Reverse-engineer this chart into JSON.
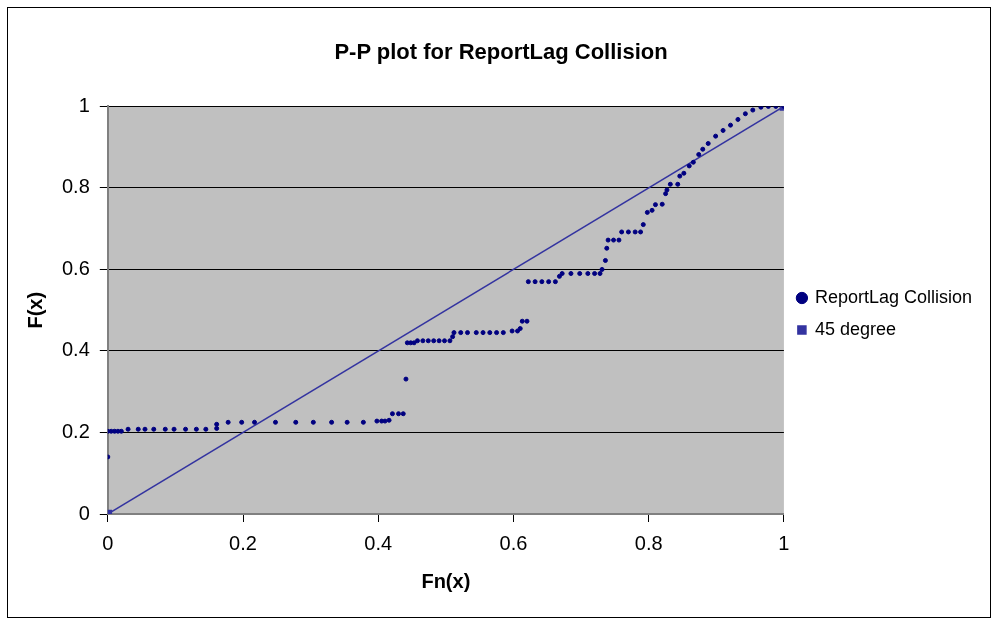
{
  "chart_data": {
    "type": "scatter",
    "title": "P-P plot for ReportLag Collision",
    "xlabel": "Fn(x)",
    "ylabel": "F(x)",
    "xlim": [
      0,
      1
    ],
    "xticks": [
      0,
      0.2,
      0.4,
      0.6,
      0.8,
      1
    ],
    "ylim": [
      0,
      1
    ],
    "yticks": [
      0,
      0.2,
      0.4,
      0.6,
      0.8,
      1
    ],
    "grid": "y",
    "legend": "right",
    "series": [
      {
        "name": "ReportLag Collision",
        "marker": "circle",
        "color": "#000080",
        "x": [
          0,
          0,
          0.005,
          0.01,
          0.015,
          0.02,
          0.03,
          0.045,
          0.055,
          0.068,
          0.085,
          0.098,
          0.115,
          0.131,
          0.145,
          0.161,
          0.161,
          0.178,
          0.198,
          0.217,
          0.248,
          0.278,
          0.304,
          0.331,
          0.354,
          0.378,
          0.398,
          0.405,
          0.41,
          0.416,
          0.421,
          0.43,
          0.437,
          0.441,
          0.443,
          0.448,
          0.453,
          0.458,
          0.466,
          0.474,
          0.482,
          0.49,
          0.498,
          0.506,
          0.51,
          0.512,
          0.522,
          0.532,
          0.545,
          0.555,
          0.565,
          0.575,
          0.585,
          0.598,
          0.606,
          0.61,
          0.613,
          0.62,
          0.622,
          0.632,
          0.642,
          0.652,
          0.662,
          0.668,
          0.672,
          0.685,
          0.698,
          0.71,
          0.72,
          0.728,
          0.731,
          0.736,
          0.738,
          0.74,
          0.748,
          0.756,
          0.76,
          0.77,
          0.78,
          0.788,
          0.792,
          0.798,
          0.805,
          0.81,
          0.82,
          0.825,
          0.827,
          0.832,
          0.843,
          0.846,
          0.852,
          0.86,
          0.866,
          0.874,
          0.88,
          0.888,
          0.899,
          0.91,
          0.921,
          0.932,
          0.943,
          0.954,
          0.966,
          0.977,
          0.988,
          1
        ],
        "values": [
          0.14,
          0.203,
          0.203,
          0.203,
          0.203,
          0.203,
          0.208,
          0.208,
          0.208,
          0.208,
          0.208,
          0.208,
          0.208,
          0.208,
          0.208,
          0.21,
          0.22,
          0.225,
          0.225,
          0.225,
          0.225,
          0.225,
          0.225,
          0.225,
          0.225,
          0.225,
          0.228,
          0.228,
          0.228,
          0.23,
          0.246,
          0.246,
          0.246,
          0.331,
          0.42,
          0.42,
          0.42,
          0.425,
          0.425,
          0.425,
          0.425,
          0.425,
          0.425,
          0.425,
          0.435,
          0.445,
          0.445,
          0.445,
          0.445,
          0.445,
          0.445,
          0.445,
          0.445,
          0.449,
          0.449,
          0.455,
          0.473,
          0.473,
          0.57,
          0.57,
          0.57,
          0.57,
          0.57,
          0.583,
          0.59,
          0.59,
          0.59,
          0.59,
          0.59,
          0.59,
          0.6,
          0.622,
          0.652,
          0.672,
          0.672,
          0.672,
          0.692,
          0.692,
          0.692,
          0.692,
          0.71,
          0.74,
          0.745,
          0.759,
          0.76,
          0.786,
          0.795,
          0.809,
          0.809,
          0.829,
          0.836,
          0.854,
          0.863,
          0.882,
          0.895,
          0.909,
          0.927,
          0.941,
          0.954,
          0.968,
          0.982,
          0.991,
          0.998,
          1,
          1,
          1
        ]
      },
      {
        "name": "45 degree",
        "type": "line",
        "marker": "square",
        "line_style": "solid",
        "color": "#3333a0",
        "x": [
          0,
          1
        ],
        "values": [
          0,
          1
        ]
      }
    ]
  }
}
